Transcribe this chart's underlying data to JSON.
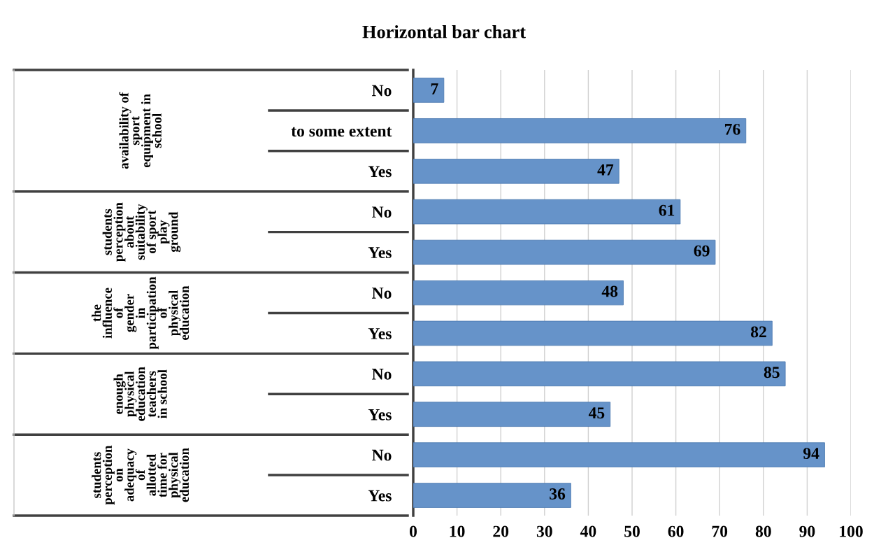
{
  "chart_data": {
    "type": "bar",
    "orientation": "horizontal",
    "title": "Horizontal bar chart",
    "categories": [
      "No",
      "to some extent",
      "Yes",
      "No",
      "Yes",
      "No",
      "Yes",
      "No",
      "Yes",
      "No",
      "Yes"
    ],
    "values": [
      7,
      76,
      47,
      61,
      69,
      48,
      82,
      85,
      45,
      94,
      36
    ],
    "color": "#6693c9",
    "xlim": [
      0,
      100
    ],
    "xticks": [
      0,
      10,
      20,
      30,
      40,
      50,
      60,
      70,
      80,
      90,
      100
    ],
    "grid": "x",
    "data_labels": true,
    "annotations": [
      "availability of\nsport\nequipment in\nschool",
      "students\nperception\nabout\nsuitability\nof sport\nplay\nground",
      "the\ninfluence\nof\ngender\nin\nparticipation\nof\nphysical\neducation",
      "enough\nphysical\neducation\nteachers\nin school",
      "students\nperception\non\nadequacy\nof\nallotted\ntime for\nphysical\neducation"
    ]
  }
}
